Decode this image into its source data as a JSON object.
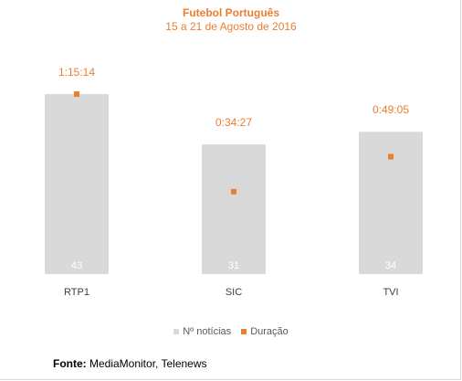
{
  "chart_data": {
    "type": "bar",
    "title": "Futebol Português",
    "subtitle": "15 a 21 de Agosto de 2016",
    "categories": [
      "RTP1",
      "SIC",
      "TVI"
    ],
    "series": [
      {
        "name": "Nº notícias",
        "values": [
          43,
          31,
          34
        ],
        "color": "#d9d9d9",
        "kind": "bar"
      },
      {
        "name": "Duração",
        "values": [
          "1:15:14",
          "0:34:27",
          "0:49:05"
        ],
        "seconds": [
          4514,
          2067,
          2945
        ],
        "color": "#ed7d31",
        "kind": "marker"
      }
    ],
    "ylim": [
      0,
      45
    ],
    "grid": false,
    "legend": "bottom",
    "xlabel": "",
    "ylabel": ""
  },
  "source": {
    "label": "Fonte:",
    "text": " MediaMonitor, Telenews"
  },
  "colors": {
    "accent": "#ed7d31",
    "bar": "#d9d9d9",
    "text": "#404040"
  }
}
